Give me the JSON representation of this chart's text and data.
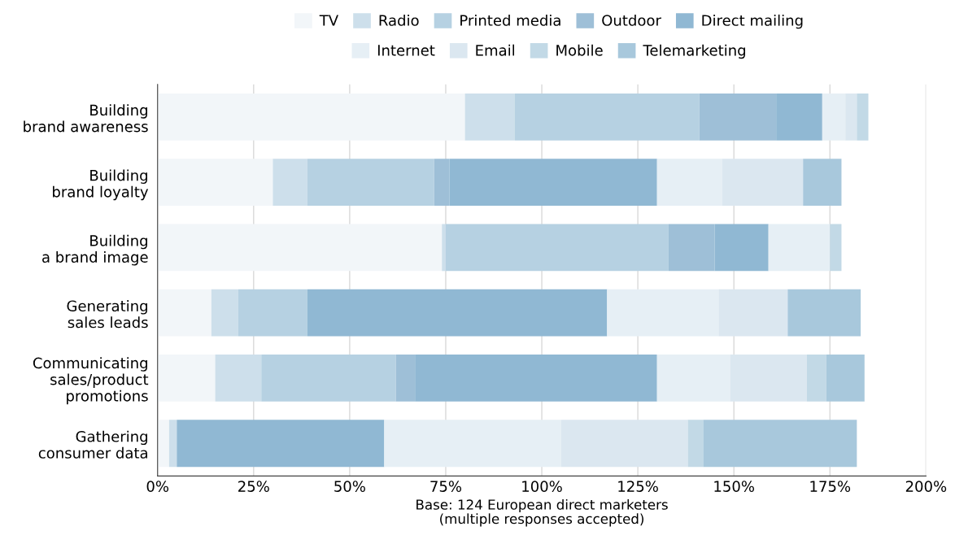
{
  "chart_data": {
    "type": "bar",
    "orientation": "horizontal",
    "stacked": true,
    "categories": [
      "Building\nbrand awareness",
      "Building\nbrand loyalty",
      "Building\na brand image",
      "Generating\nsales leads",
      "Communicating\nsales/product\npromotions",
      "Gathering\nconsumer data"
    ],
    "series": [
      {
        "name": "TV",
        "color": "#f2f6f9",
        "values": [
          80,
          30,
          74,
          14,
          15,
          3
        ]
      },
      {
        "name": "Radio",
        "color": "#cddfeb",
        "values": [
          13,
          9,
          1,
          7,
          12,
          2
        ]
      },
      {
        "name": "Printed media",
        "color": "#b6d1e2",
        "values": [
          48,
          33,
          58,
          18,
          35,
          0
        ]
      },
      {
        "name": "Outdoor",
        "color": "#9ebfd7",
        "values": [
          20,
          4,
          12,
          0,
          5,
          0
        ]
      },
      {
        "name": "Direct mailing",
        "color": "#90b8d3",
        "values": [
          12,
          54,
          14,
          78,
          63,
          54
        ]
      },
      {
        "name": "Internet",
        "color": "#e6eff5",
        "values": [
          6,
          17,
          16,
          29,
          19,
          46
        ]
      },
      {
        "name": "Email",
        "color": "#dbe7f0",
        "values": [
          3,
          21,
          0,
          18,
          20,
          33
        ]
      },
      {
        "name": "Mobile",
        "color": "#c2d9e6",
        "values": [
          3,
          0,
          3,
          0,
          5,
          4
        ]
      },
      {
        "name": "Telemarketing",
        "color": "#a8c8dc",
        "values": [
          0,
          10,
          0,
          19,
          10,
          40
        ]
      }
    ],
    "xlim": [
      0,
      200
    ],
    "xticks": [
      {
        "value": 0,
        "label": "0%"
      },
      {
        "value": 25,
        "label": "25%"
      },
      {
        "value": 50,
        "label": "50%"
      },
      {
        "value": 75,
        "label": "75%"
      },
      {
        "value": 100,
        "label": "100%"
      },
      {
        "value": 125,
        "label": "125%"
      },
      {
        "value": 150,
        "label": "150%"
      },
      {
        "value": 175,
        "label": "175%"
      },
      {
        "value": 200,
        "label": "200%"
      }
    ],
    "xlabel": "Base: 124 European direct marketers\n(multiple responses accepted)",
    "grid": "x",
    "legend": "top"
  }
}
